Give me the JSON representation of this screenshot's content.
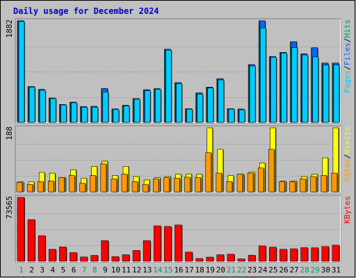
{
  "chart_data": {
    "type": "bar",
    "title": "Daily usage for December 2024",
    "categories": [
      "1",
      "2",
      "3",
      "4",
      "5",
      "6",
      "7",
      "8",
      "9",
      "10",
      "11",
      "12",
      "13",
      "14",
      "15",
      "16",
      "17",
      "18",
      "19",
      "20",
      "21",
      "22",
      "23",
      "24",
      "25",
      "26",
      "27",
      "28",
      "29",
      "30",
      "31"
    ],
    "weekend_days": [
      "1",
      "7",
      "8",
      "14",
      "15",
      "21",
      "22",
      "28",
      "29"
    ],
    "panels": [
      {
        "name": "pages-files-hits",
        "ymax_label": "1882",
        "ylim": [
          0,
          1882
        ],
        "legend": [
          {
            "text": "Pages",
            "color": "#00ccff"
          },
          {
            "text": "/",
            "color": "#000000"
          },
          {
            "text": "Files",
            "color": "#0066ff"
          },
          {
            "text": "/",
            "color": "#000000"
          },
          {
            "text": "Hits",
            "color": "#009966"
          }
        ],
        "series": [
          {
            "name": "Hits",
            "color": "#009966",
            "values": [
              1882,
              663,
              610,
              449,
              330,
              373,
              293,
              296,
              626,
              248,
              316,
              438,
              604,
              623,
              1356,
              735,
              252,
              546,
              653,
              809,
              253,
              245,
              1071,
              1882,
              1220,
              1298,
              1494,
              1269,
              1383,
              1099,
              1099
            ]
          },
          {
            "name": "Files",
            "color": "#0066ff",
            "values": [
              1882,
              663,
              610,
              449,
              330,
              373,
              293,
              296,
              626,
              248,
              316,
              438,
              604,
              623,
              1356,
              735,
              252,
              546,
              653,
              809,
              253,
              245,
              1071,
              1882,
              1220,
              1298,
              1494,
              1269,
              1383,
              1099,
              1099
            ]
          },
          {
            "name": "Pages",
            "color": "#00ccff",
            "values": [
              1870,
              653,
              593,
              441,
              322,
              362,
              279,
              280,
              562,
              238,
              304,
              429,
              586,
              610,
              1339,
              716,
              244,
              522,
              635,
              786,
              245,
              231,
              1045,
              1750,
              1206,
              1283,
              1386,
              1250,
              1213,
              1064,
              1064
            ]
          }
        ]
      },
      {
        "name": "sites-visits",
        "ymax_label": "188",
        "ylim": [
          0,
          188
        ],
        "legend": [
          {
            "text": "Sites",
            "color": "#ff9900"
          },
          {
            "text": "/",
            "color": "#000000"
          },
          {
            "text": "Visits",
            "color": "#ffff00"
          }
        ],
        "series": [
          {
            "name": "Visits",
            "color": "#ffff00",
            "values": [
              30,
              30,
              57,
              55,
              42,
              65,
              40,
              75,
              90,
              48,
              75,
              45,
              35,
              42,
              45,
              52,
              52,
              52,
              188,
              125,
              48,
              52,
              58,
              85,
              188,
              32,
              32,
              45,
              52,
              100,
              188
            ]
          },
          {
            "name": "Sites",
            "color": "#ff9900",
            "values": [
              28,
              22,
              30,
              32,
              42,
              48,
              25,
              48,
              82,
              38,
              52,
              30,
              22,
              38,
              42,
              40,
              43,
              42,
              115,
              55,
              30,
              52,
              55,
              70,
              125,
              30,
              30,
              38,
              45,
              48,
              55
            ]
          }
        ]
      },
      {
        "name": "kbytes",
        "ymax_label": "73565",
        "ylim": [
          0,
          73565
        ],
        "legend": [
          {
            "text": "KBytes",
            "color": "#ff0000"
          }
        ],
        "series": [
          {
            "name": "KBytes",
            "color": "#ff0000",
            "values": [
              73565,
              48000,
              29500,
              13800,
              16500,
              10000,
              5000,
              6800,
              23800,
              5400,
              7600,
              12500,
              23800,
              40800,
              40100,
              41800,
              10600,
              3200,
              4800,
              7600,
              8200,
              2800,
              7000,
              17700,
              16300,
              13800,
              14400,
              15800,
              15600,
              17000,
              18600
            ]
          }
        ]
      }
    ]
  }
}
